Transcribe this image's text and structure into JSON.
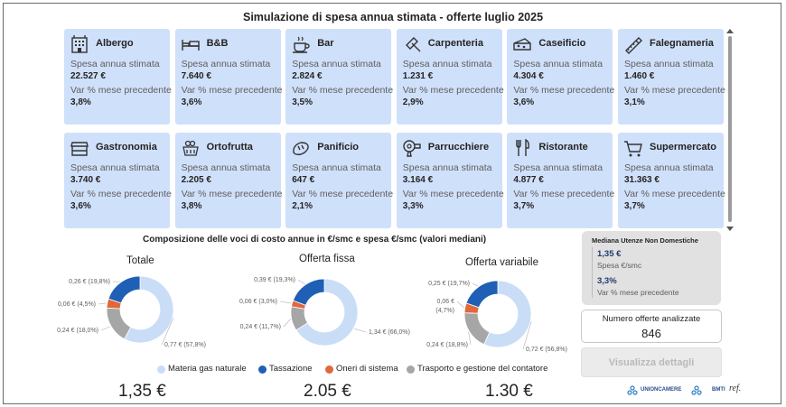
{
  "title": "Simulazione di spesa annua stimata - offerte luglio 2025",
  "cards": [
    {
      "name": "Albergo",
      "icon": "hotel-icon",
      "spend_label": "Spesa annua stimata",
      "spend": "22.527 €",
      "var_label": "Var % mese precedente",
      "var": "3,8%"
    },
    {
      "name": "B&B",
      "icon": "bed-icon",
      "spend_label": "Spesa annua stimata",
      "spend": "7.640 €",
      "var_label": "Var % mese precedente",
      "var": "3,6%"
    },
    {
      "name": "Bar",
      "icon": "coffee-cup-icon",
      "spend_label": "Spesa annua stimata",
      "spend": "2.824 €",
      "var_label": "Var % mese precedente",
      "var": "3,5%"
    },
    {
      "name": "Carpenteria",
      "icon": "trowel-icon",
      "spend_label": "Spesa annua stimata",
      "spend": "1.231 €",
      "var_label": "Var % mese precedente",
      "var": "2,9%"
    },
    {
      "name": "Caseificio",
      "icon": "cheese-icon",
      "spend_label": "Spesa annua stimata",
      "spend": "4.304 €",
      "var_label": "Var % mese precedente",
      "var": "3,6%"
    },
    {
      "name": "Falegnameria",
      "icon": "saw-icon",
      "spend_label": "Spesa annua stimata",
      "spend": "1.460 €",
      "var_label": "Var % mese precedente",
      "var": "3,1%"
    },
    {
      "name": "Gastronomia",
      "icon": "shop-counter-icon",
      "spend_label": "Spesa annua stimata",
      "spend": "3.740 €",
      "var_label": "Var % mese precedente",
      "var": "3,6%"
    },
    {
      "name": "Ortofrutta",
      "icon": "fruit-basket-icon",
      "spend_label": "Spesa annua stimata",
      "spend": "2.205 €",
      "var_label": "Var % mese precedente",
      "var": "3,8%"
    },
    {
      "name": "Panificio",
      "icon": "bread-icon",
      "spend_label": "Spesa annua stimata",
      "spend": "647 €",
      "var_label": "Var % mese precedente",
      "var": "2,1%"
    },
    {
      "name": "Parrucchiere",
      "icon": "hair-dryer-icon",
      "spend_label": "Spesa annua stimata",
      "spend": "3.164 €",
      "var_label": "Var % mese precedente",
      "var": "3,3%"
    },
    {
      "name": "Ristorante",
      "icon": "cutlery-icon",
      "spend_label": "Spesa annua stimata",
      "spend": "4.877 €",
      "var_label": "Var % mese precedente",
      "var": "3,7%"
    },
    {
      "name": "Supermercato",
      "icon": "shopping-cart-icon",
      "spend_label": "Spesa annua stimata",
      "spend": "31.363 €",
      "var_label": "Var % mese precedente",
      "var": "3,7%"
    }
  ],
  "composition": {
    "title": "Composizione delle voci di costo annue in €/smc e spesa €/smc (valori mediani)",
    "totals": [
      {
        "title": "Totale",
        "value": "1,35 €"
      },
      {
        "title": "Offerta fissa",
        "value": "2.05 €"
      },
      {
        "title": "Offerta variabile",
        "value": "1.30 €"
      }
    ]
  },
  "chart_data": [
    {
      "type": "pie",
      "title": "Totale",
      "categories": [
        "Materia gas naturale",
        "Tassazione",
        "Oneri di sistema",
        "Trasporto e gestione del contatore"
      ],
      "values": [
        0.77,
        0.26,
        0.06,
        0.24
      ],
      "percentages": [
        57.8,
        19.8,
        4.5,
        18.0
      ],
      "data_labels": [
        "0,77 € (57,8%)",
        "0,26 € (19,8%)",
        "0,06 € (4,5%)",
        "0,24 € (18,0%)"
      ]
    },
    {
      "type": "pie",
      "title": "Offerta fissa",
      "categories": [
        "Materia gas naturale",
        "Tassazione",
        "Oneri di sistema",
        "Trasporto e gestione del contatore"
      ],
      "values": [
        1.34,
        0.39,
        0.06,
        0.24
      ],
      "percentages": [
        66.0,
        19.3,
        3.0,
        11.7
      ],
      "data_labels": [
        "1,34 € (66,0%)",
        "0,39 € (19,3%)",
        "0,06 € (3,0%)",
        "0,24 € (11,7%)"
      ]
    },
    {
      "type": "pie",
      "title": "Offerta variabile",
      "categories": [
        "Materia gas naturale",
        "Tassazione",
        "Oneri di sistema",
        "Trasporto e gestione del contatore"
      ],
      "values": [
        0.72,
        0.25,
        0.06,
        0.24
      ],
      "percentages": [
        56.8,
        19.7,
        4.7,
        18.8
      ],
      "data_labels": [
        "0,72 € (56,8%)",
        "0,25 € (19,7%)",
        "0,06 € (4,7%)",
        "0,24 € (18,8%)"
      ]
    }
  ],
  "legend": [
    {
      "label": "Materia gas naturale",
      "color": "#c9ddf7"
    },
    {
      "label": "Tassazione",
      "color": "#1f5fb5"
    },
    {
      "label": "Oneri di sistema",
      "color": "#e0683c"
    },
    {
      "label": "Trasporto e gestione del contatore",
      "color": "#a6a6a6"
    }
  ],
  "median": {
    "title": "Mediana Utenze Non Domestiche",
    "price_value": "1,35 €",
    "price_label": "Spesa €/smc",
    "var_value": "3,3%",
    "var_label": "Var % mese precedente"
  },
  "offers": {
    "label": "Numero offerte analizzate",
    "value": "846"
  },
  "details_button": "Visualizza dettagli",
  "logos": {
    "unioncamere": "UNIONCAMERE",
    "bmti": "BMTI",
    "ref": "ref."
  },
  "colors": {
    "card_bg": "#cfe0fa",
    "gas": "#c9ddf7",
    "tax": "#1f5fb5",
    "system": "#e0683c",
    "transport": "#a6a6a6"
  }
}
